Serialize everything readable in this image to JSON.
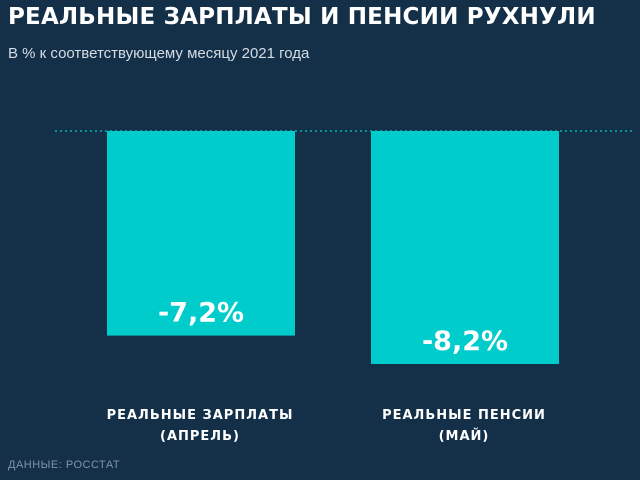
{
  "chart_data": {
    "type": "bar",
    "title": "РЕАЛЬНЫЕ ЗАРПЛАТЫ И ПЕНСИИ РУХНУЛИ",
    "subtitle": "В % к соответствующему месяцу 2021 года",
    "categories": [
      [
        "РЕАЛЬНЫЕ ЗАРПЛАТЫ",
        "(АПРЕЛЬ)"
      ],
      [
        "РЕАЛЬНЫЕ ПЕНСИИ",
        "(МАЙ)"
      ]
    ],
    "values": [
      -7.2,
      -8.2
    ],
    "value_labels": [
      "-7,2%",
      "-8,2%"
    ],
    "baseline": 0,
    "ylim": [
      -8.2,
      0
    ],
    "grid": false,
    "source": "ДАННЫЕ: РОССТАТ",
    "colors": {
      "background": "#143048",
      "bar": "#00cccc",
      "baseline": "#00cccc",
      "title": "#ffffff",
      "label": "#ffffff"
    }
  }
}
